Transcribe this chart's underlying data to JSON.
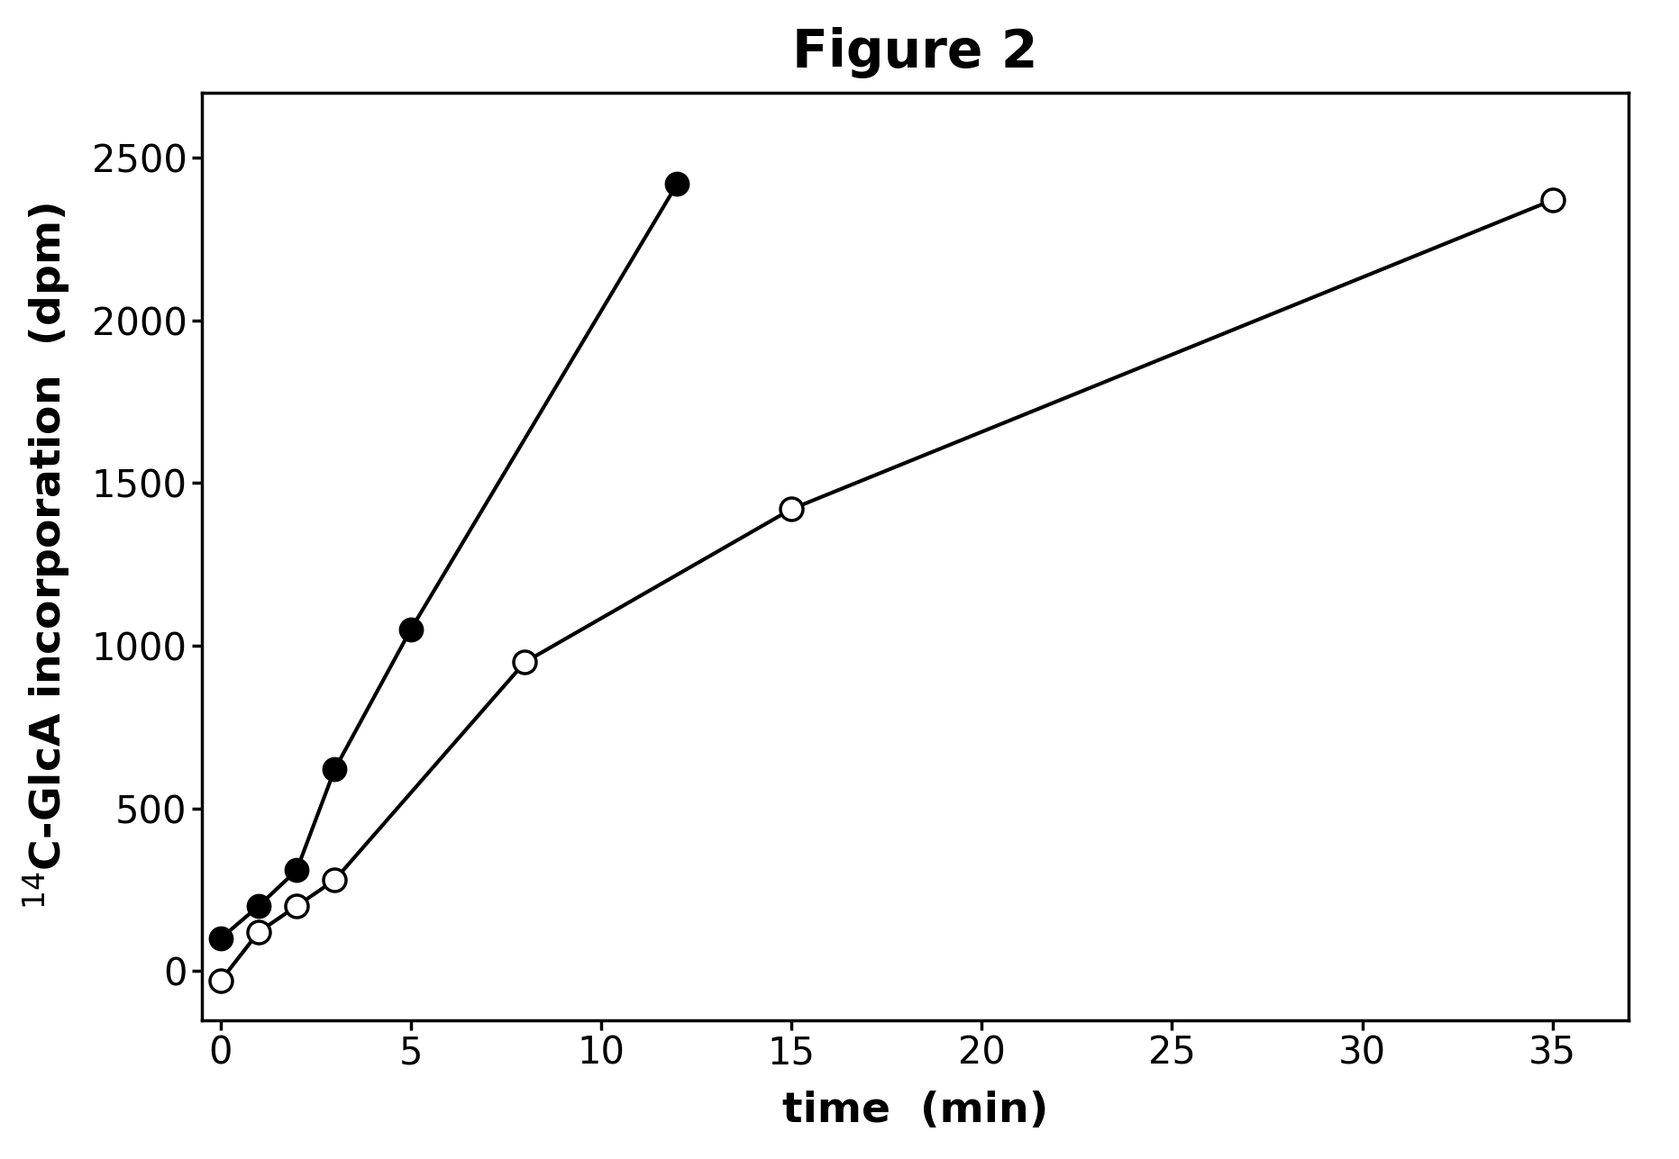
{
  "title": "Figure 2",
  "xlabel": "time  (min)",
  "ylabel": "$^{14}$C-GlcA incorporation  (dpm)",
  "xlim": [
    -0.5,
    37
  ],
  "ylim": [
    -150,
    2700
  ],
  "xticks": [
    0,
    5,
    10,
    15,
    20,
    25,
    30,
    35
  ],
  "yticks": [
    0,
    500,
    1000,
    1500,
    2000,
    2500
  ],
  "filled_x": [
    0,
    1,
    2,
    3,
    5,
    12
  ],
  "filled_y": [
    100,
    200,
    310,
    620,
    1050,
    2420
  ],
  "open_x": [
    0,
    1,
    2,
    3,
    8,
    15,
    35
  ],
  "open_y": [
    -30,
    120,
    200,
    280,
    950,
    1420,
    2370
  ],
  "line_color": "#000000",
  "filled_marker_color": "#000000",
  "open_marker_facecolor": "#ffffff",
  "open_marker_edgecolor": "#000000",
  "marker_size": 18,
  "line_width": 3.0,
  "title_fontsize": 42,
  "label_fontsize": 34,
  "tick_fontsize": 30,
  "background_color": "#ffffff"
}
